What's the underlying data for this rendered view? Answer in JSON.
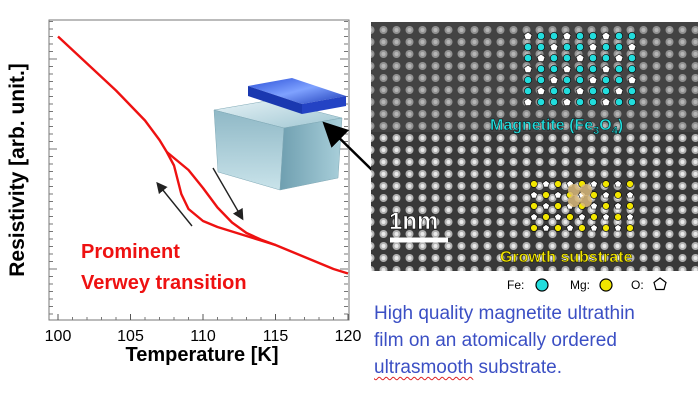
{
  "chart_data": {
    "type": "line",
    "xlabel": "Temperature [K]",
    "ylabel": "Resistivity [arb. unit.]",
    "xlim": [
      100,
      120
    ],
    "xticks": [
      "100",
      "105",
      "110",
      "115",
      "120"
    ],
    "grid": false,
    "series": [
      {
        "x": [
          100,
          101,
          102,
          103,
          104,
          105,
          106,
          107,
          107.5,
          108,
          108.5,
          109,
          110,
          111,
          112,
          113,
          114,
          115,
          116,
          117,
          118,
          119,
          120
        ],
        "y": [
          0.945,
          0.9,
          0.855,
          0.81,
          0.765,
          0.715,
          0.665,
          0.6,
          0.56,
          0.515,
          0.42,
          0.37,
          0.33,
          0.31,
          0.295,
          0.28,
          0.265,
          0.25,
          0.23,
          0.21,
          0.19,
          0.17,
          0.155
        ],
        "color": "#ee1111"
      },
      {
        "x": [
          107.5,
          108,
          109,
          110,
          111,
          112,
          113,
          114,
          115
        ],
        "y": [
          0.56,
          0.54,
          0.5,
          0.44,
          0.375,
          0.325,
          0.29,
          0.268,
          0.25
        ],
        "color": "#ee1111"
      }
    ],
    "annotations": [
      "Prominent",
      "Verwey transition"
    ],
    "annotation_color": "#ee1111"
  },
  "tem": {
    "scale_label": "1nm",
    "label_magnetite_prefix": "Magnetite (Fe",
    "label_magnetite_sub1": "3",
    "label_magnetite_mid": "O",
    "label_magnetite_sub2": "4",
    "label_magnetite_suffix": ")",
    "label_magnetite_color": "#22dddd",
    "label_substrate": "Growth substrate",
    "label_substrate_color": "#f2e600"
  },
  "legend": {
    "fe": "Fe:",
    "mg": "Mg:",
    "o": "O:",
    "fe_color": "#22dddd",
    "mg_color": "#f2e600"
  },
  "caption": {
    "line1": "High quality magnetite ultrathin",
    "line2": "film on an atomically ordered",
    "line3_underlined": "ultrasmooth",
    "line3_rest": " substrate."
  }
}
